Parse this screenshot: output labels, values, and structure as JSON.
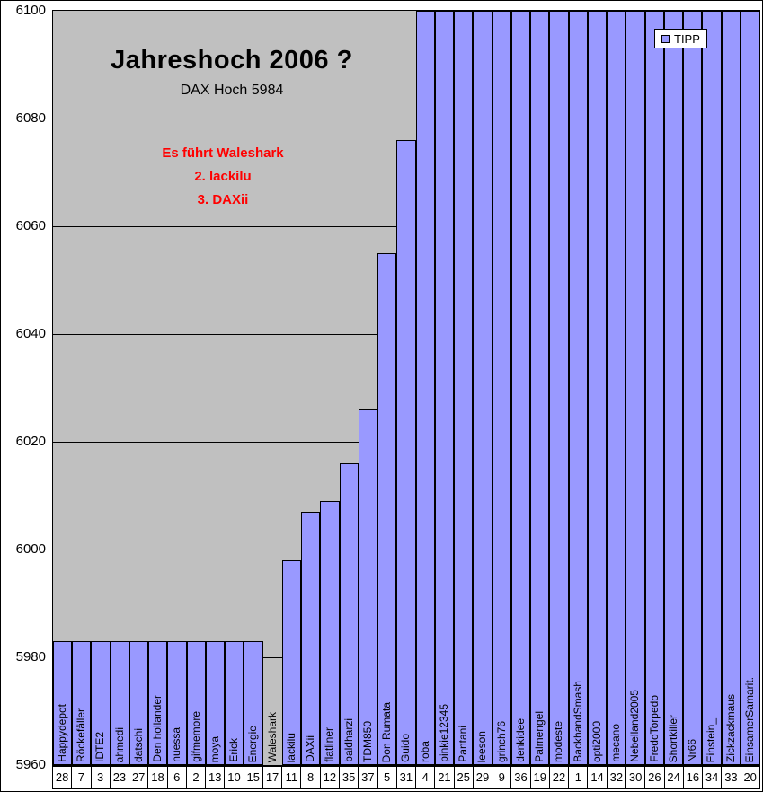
{
  "chart_data": {
    "type": "bar",
    "title": "Jahreshoch 2006 ?",
    "subtitle": "DAX Hoch 5984",
    "annotation_lines": [
      "Es führt Waleshark",
      "2. lackilu",
      "3. DAXii"
    ],
    "series_name": "TIPP",
    "legend_position": "top-right",
    "grid": true,
    "ylim": [
      5960,
      6100
    ],
    "yticks": [
      5960,
      5980,
      6000,
      6020,
      6040,
      6060,
      6080,
      6100
    ],
    "categories": [
      "Happydepot",
      "Röckefäller",
      "IDTE2",
      "ahmedi",
      "datschi",
      "Den hollander",
      "nuessa",
      "gifmemore",
      "moya",
      "Erick",
      "Energie",
      "Waleshark",
      "lackilu",
      "DAXii",
      "flatliner",
      "baldharzi",
      "TDM850",
      "Don Rumata",
      "Guido",
      "roba",
      "pinkie12345",
      "Pantani",
      "leeson",
      "grinch76",
      "denkidee",
      "Palmengel",
      "modeste",
      "BackhandSmash",
      "opti2000",
      "mecano",
      "Nebelland2005",
      "FredoTorpedo",
      "Shortkiller",
      "Nr66",
      "Einstein_",
      "Zickzackmaus",
      "EinsamerSamarit."
    ],
    "values": [
      5983,
      5983,
      5983,
      5983,
      5983,
      5983,
      5983,
      5983,
      5983,
      5983,
      5983,
      5960,
      5998,
      6007,
      6009,
      6016,
      6026,
      6055,
      6076,
      6100,
      6100,
      6100,
      6100,
      6100,
      6100,
      6100,
      6100,
      6100,
      6100,
      6100,
      6100,
      6100,
      6100,
      6100,
      6100,
      6100,
      6100
    ],
    "entry_numbers": [
      28,
      7,
      3,
      23,
      27,
      18,
      6,
      2,
      13,
      10,
      15,
      17,
      11,
      8,
      12,
      35,
      37,
      5,
      31,
      4,
      21,
      25,
      29,
      9,
      36,
      19,
      22,
      1,
      14,
      32,
      30,
      26,
      24,
      16,
      34,
      33,
      20
    ],
    "bar_color": "#9999FF",
    "bar_border_color": "#000000",
    "plot_bg": "#C0C0C0",
    "annotation_color": "#FF0000"
  }
}
